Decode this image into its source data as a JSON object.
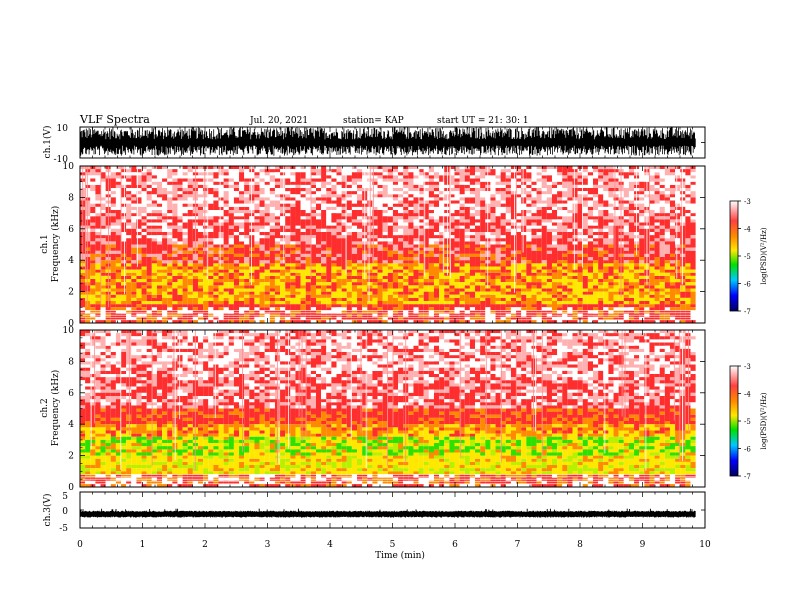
{
  "header": {
    "title": "VLF Spectra",
    "date": "Jul. 20, 2021",
    "station": "station= KAP",
    "start": "start UT = 21: 30: 1"
  },
  "colors": {
    "spectrum": [
      "#ffffff",
      "#ff3b3b",
      "#ff8a00",
      "#ffe800",
      "#00e000",
      "#00c8ff",
      "#0000ff",
      "#000060"
    ],
    "trace": "#000000"
  },
  "chart_data": [
    {
      "type": "line",
      "panel": "ch1-waveform",
      "ylabel": "ch.1(V)",
      "ylim": [
        -10,
        10
      ],
      "yticks": [
        "10",
        "-10"
      ],
      "xlim": [
        0,
        10
      ],
      "signal": "dense broadband noise spanning roughly -8 to +10 V across the full record"
    },
    {
      "type": "heatmap",
      "panel": "ch1-spectrogram",
      "ylabel": "ch.1",
      "ylabel2": "Frequency (kHz)",
      "ylim": [
        0,
        10
      ],
      "yticks": [
        "0",
        "2",
        "4",
        "6",
        "8",
        "10"
      ],
      "xlim": [
        0,
        9.85
      ],
      "bands": [
        {
          "from_khz": 0.0,
          "to_khz": 0.9,
          "level": "red/white lines"
        },
        {
          "from_khz": 1.0,
          "to_khz": 1.3,
          "level": "red"
        },
        {
          "from_khz": 1.3,
          "to_khz": 3.8,
          "level": "yellow/orange"
        },
        {
          "from_khz": 3.8,
          "to_khz": 5.0,
          "level": "red"
        },
        {
          "from_khz": 5.0,
          "to_khz": 10.0,
          "level": "pink/white speckle"
        }
      ],
      "colorbar": {
        "label": "log(PSD)(V²/Hz)",
        "range": [
          -7,
          -3
        ],
        "ticks": [
          "-3",
          "-4",
          "-5",
          "-6",
          "-7"
        ]
      }
    },
    {
      "type": "heatmap",
      "panel": "ch2-spectrogram",
      "ylabel": "ch.2",
      "ylabel2": "Frequency (kHz)",
      "ylim": [
        0,
        10
      ],
      "yticks": [
        "0",
        "2",
        "4",
        "6",
        "8",
        "10"
      ],
      "xlim": [
        0,
        9.85
      ],
      "bands": [
        {
          "from_khz": 0.0,
          "to_khz": 0.8,
          "level": "red/orange lines"
        },
        {
          "from_khz": 0.8,
          "to_khz": 2.0,
          "level": "yellow"
        },
        {
          "from_khz": 2.0,
          "to_khz": 3.2,
          "level": "green/yellow"
        },
        {
          "from_khz": 3.2,
          "to_khz": 4.0,
          "level": "orange"
        },
        {
          "from_khz": 4.0,
          "to_khz": 5.0,
          "level": "red"
        },
        {
          "from_khz": 5.0,
          "to_khz": 10.0,
          "level": "pink/white speckle"
        }
      ],
      "colorbar": {
        "label": "log(PSD)(V²/Hz)",
        "range": [
          -7,
          -3
        ],
        "ticks": [
          "-3",
          "-4",
          "-5",
          "-6",
          "-7"
        ]
      }
    },
    {
      "type": "line",
      "panel": "ch3-waveform",
      "ylabel": "ch.3(V)",
      "ylim": [
        -5,
        5
      ],
      "yticks": [
        "5",
        "0",
        "-5"
      ],
      "xlim": [
        0,
        10
      ],
      "signal": "narrow band near -1 V across the full record"
    }
  ],
  "xaxis": {
    "label": "Time (min)",
    "ticks": [
      "0",
      "1",
      "2",
      "3",
      "4",
      "5",
      "6",
      "7",
      "8",
      "9",
      "10"
    ],
    "range": [
      0,
      10
    ]
  }
}
